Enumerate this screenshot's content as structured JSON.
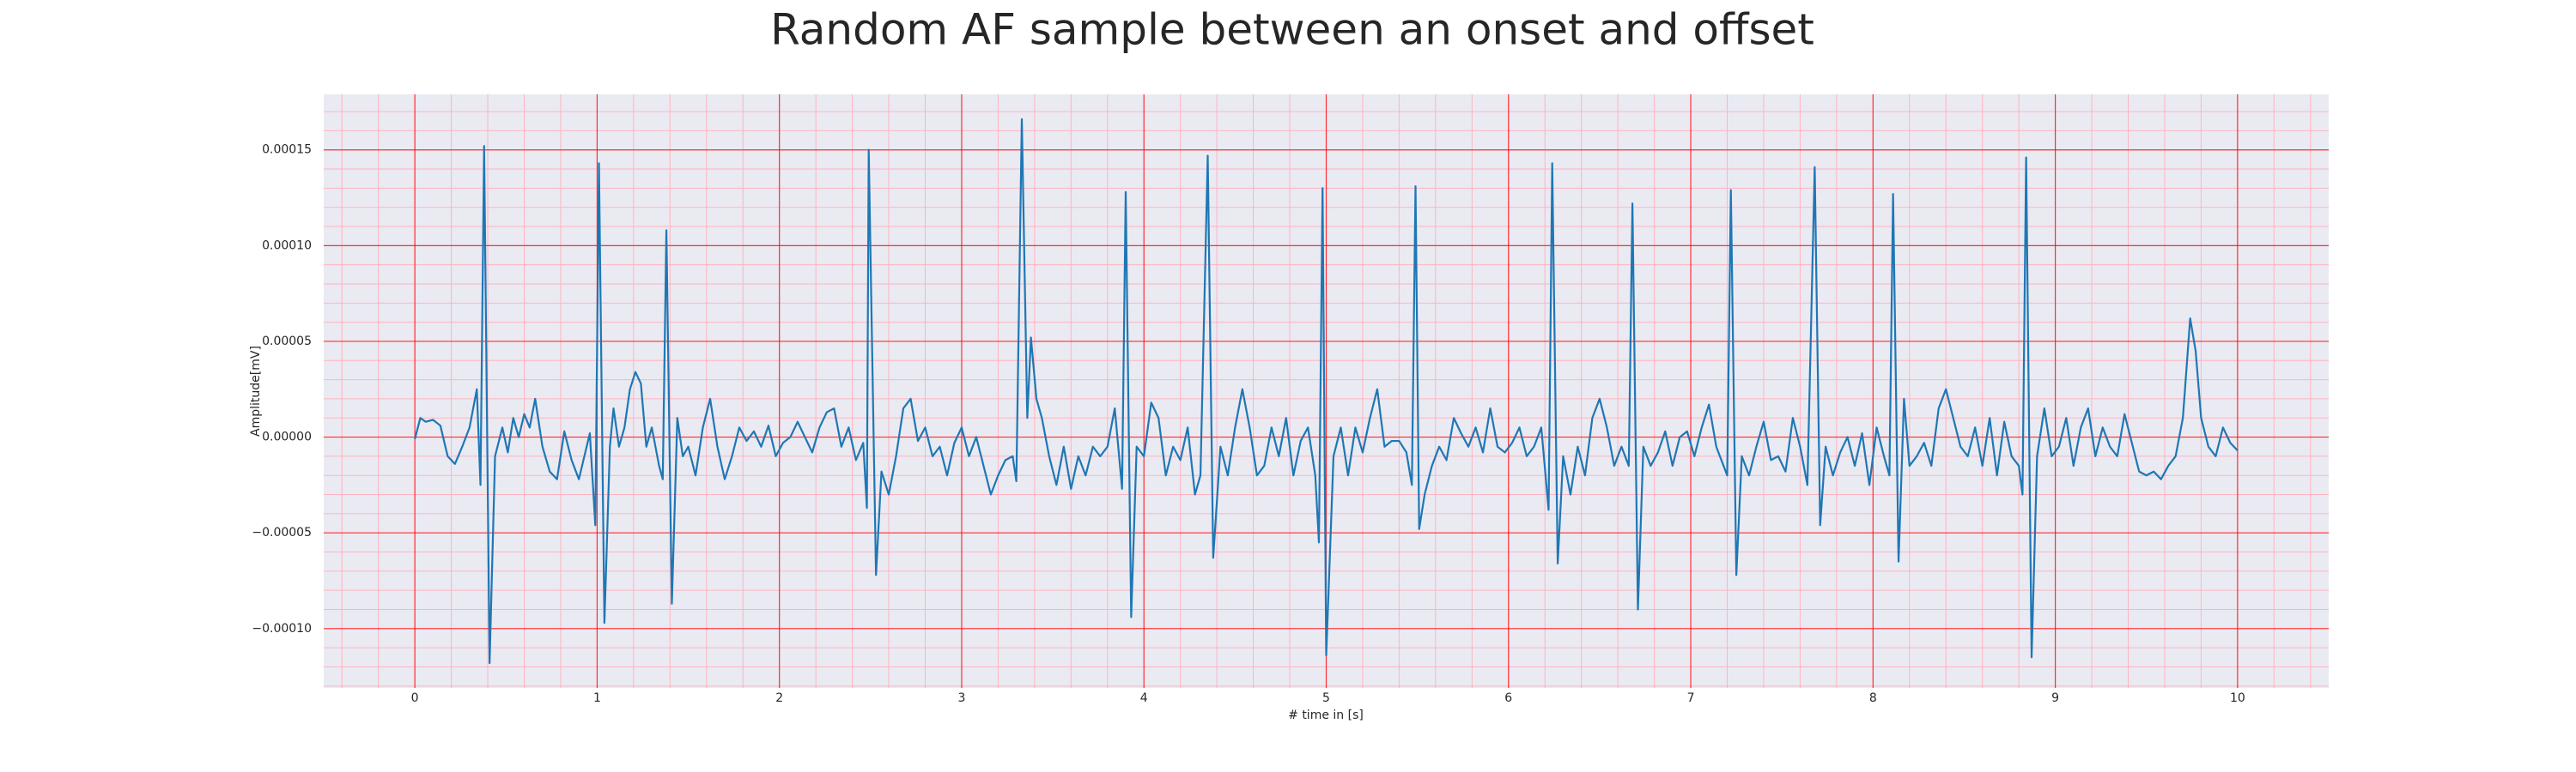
{
  "chart_data": {
    "type": "line",
    "title": "Random AF sample between an onset and offset",
    "x_label": "# time in [s]",
    "y_label": "Amplitude[mV]",
    "color": "#1f77b4",
    "background": "#eaeaf2",
    "grid": true,
    "grid_color": "#ff0000",
    "minor_grid": true,
    "minor_grid_color": "#ffb3c0",
    "xlim": [
      -0.5,
      10.5
    ],
    "xticks": [
      0,
      1,
      2,
      3,
      4,
      5,
      6,
      7,
      8,
      9,
      10
    ],
    "ylim": [
      -0.000131,
      0.000179
    ],
    "yticks": [
      {
        "value": 0.00015,
        "label": "0.00015"
      },
      {
        "value": 0.0001,
        "label": "0.00010"
      },
      {
        "value": 5e-05,
        "label": "0.00005"
      },
      {
        "value": 0,
        "label": "0.00000"
      },
      {
        "value": -5e-05,
        "label": "−0.00005"
      },
      {
        "value": -0.0001,
        "label": "−0.00010"
      }
    ],
    "x": [
      0,
      0.03,
      0.06,
      0.1,
      0.14,
      0.18,
      0.22,
      0.26,
      0.3,
      0.34,
      0.36,
      0.38,
      0.41,
      0.44,
      0.48,
      0.51,
      0.54,
      0.57,
      0.6,
      0.63,
      0.66,
      0.7,
      0.74,
      0.78,
      0.82,
      0.86,
      0.9,
      0.93,
      0.96,
      0.99,
      1.01,
      1.04,
      1.07,
      1.09,
      1.12,
      1.15,
      1.18,
      1.21,
      1.24,
      1.27,
      1.3,
      1.34,
      1.36,
      1.38,
      1.41,
      1.44,
      1.47,
      1.5,
      1.54,
      1.58,
      1.62,
      1.66,
      1.7,
      1.74,
      1.78,
      1.82,
      1.86,
      1.9,
      1.94,
      1.98,
      2.02,
      2.06,
      2.1,
      2.14,
      2.18,
      2.22,
      2.26,
      2.3,
      2.34,
      2.38,
      2.42,
      2.46,
      2.48,
      2.49,
      2.53,
      2.56,
      2.6,
      2.64,
      2.68,
      2.72,
      2.76,
      2.8,
      2.84,
      2.88,
      2.92,
      2.96,
      3,
      3.04,
      3.08,
      3.12,
      3.16,
      3.2,
      3.24,
      3.28,
      3.3,
      3.33,
      3.36,
      3.38,
      3.41,
      3.44,
      3.48,
      3.52,
      3.56,
      3.6,
      3.64,
      3.68,
      3.72,
      3.76,
      3.8,
      3.84,
      3.88,
      3.9,
      3.93,
      3.96,
      4,
      4.04,
      4.08,
      4.12,
      4.16,
      4.2,
      4.24,
      4.28,
      4.31,
      4.35,
      4.38,
      4.42,
      4.46,
      4.5,
      4.54,
      4.58,
      4.62,
      4.66,
      4.7,
      4.74,
      4.78,
      4.82,
      4.86,
      4.9,
      4.94,
      4.96,
      4.98,
      5,
      5.04,
      5.08,
      5.12,
      5.16,
      5.2,
      5.24,
      5.28,
      5.32,
      5.36,
      5.4,
      5.44,
      5.47,
      5.49,
      5.51,
      5.54,
      5.58,
      5.62,
      5.66,
      5.7,
      5.74,
      5.78,
      5.82,
      5.86,
      5.9,
      5.94,
      5.98,
      6.02,
      6.06,
      6.1,
      6.14,
      6.18,
      6.22,
      6.24,
      6.27,
      6.3,
      6.34,
      6.38,
      6.42,
      6.46,
      6.5,
      6.54,
      6.58,
      6.62,
      6.66,
      6.68,
      6.71,
      6.74,
      6.78,
      6.82,
      6.86,
      6.9,
      6.94,
      6.98,
      7.02,
      7.06,
      7.1,
      7.14,
      7.18,
      7.2,
      7.22,
      7.25,
      7.28,
      7.32,
      7.36,
      7.4,
      7.44,
      7.48,
      7.52,
      7.56,
      7.6,
      7.64,
      7.68,
      7.71,
      7.74,
      7.78,
      7.82,
      7.86,
      7.9,
      7.94,
      7.98,
      8.02,
      8.06,
      8.09,
      8.11,
      8.14,
      8.17,
      8.2,
      8.24,
      8.28,
      8.32,
      8.36,
      8.4,
      8.44,
      8.48,
      8.52,
      8.56,
      8.6,
      8.64,
      8.68,
      8.72,
      8.76,
      8.8,
      8.82,
      8.84,
      8.87,
      8.9,
      8.94,
      8.98,
      9.02,
      9.06,
      9.1,
      9.14,
      9.18,
      9.22,
      9.26,
      9.3,
      9.34,
      9.38,
      9.42,
      9.46,
      9.5,
      9.54,
      9.58,
      9.62,
      9.66,
      9.7,
      9.74,
      9.77,
      9.8,
      9.84,
      9.88,
      9.92,
      9.96,
      10
    ],
    "values": [
      -1e-06,
      1e-05,
      8e-06,
      9e-06,
      6e-06,
      -1e-05,
      -1.4e-05,
      -5e-06,
      5e-06,
      2.5e-05,
      -2.5e-05,
      0.000152,
      -0.000118,
      -1e-05,
      5e-06,
      -8e-06,
      1e-05,
      0,
      1.2e-05,
      5e-06,
      2e-05,
      -5e-06,
      -1.8e-05,
      -2.2e-05,
      3e-06,
      -1.2e-05,
      -2.2e-05,
      -1e-05,
      2e-06,
      -4.6e-05,
      0.000143,
      -9.7e-05,
      -5e-06,
      1.5e-05,
      -5e-06,
      5e-06,
      2.5e-05,
      3.4e-05,
      2.8e-05,
      -5e-06,
      5e-06,
      -1.5e-05,
      -2.2e-05,
      0.000108,
      -8.7e-05,
      1e-05,
      -1e-05,
      -5e-06,
      -2e-05,
      5e-06,
      2e-05,
      -5e-06,
      -2.2e-05,
      -1e-05,
      5e-06,
      -2e-06,
      3e-06,
      -5e-06,
      6e-06,
      -1e-05,
      -3e-06,
      0,
      8e-06,
      0,
      -8e-06,
      5e-06,
      1.3e-05,
      1.5e-05,
      -5e-06,
      5e-06,
      -1.2e-05,
      -3e-06,
      -3.7e-05,
      0.00015,
      -7.2e-05,
      -1.8e-05,
      -3e-05,
      -1e-05,
      1.5e-05,
      2e-05,
      -2e-06,
      5e-06,
      -1e-05,
      -5e-06,
      -2e-05,
      -3e-06,
      5e-06,
      -1e-05,
      0,
      -1.5e-05,
      -3e-05,
      -2e-05,
      -1.2e-05,
      -1e-05,
      -2.3e-05,
      0.000166,
      1e-05,
      5.2e-05,
      2e-05,
      1e-05,
      -1e-05,
      -2.5e-05,
      -5e-06,
      -2.7e-05,
      -1e-05,
      -2e-05,
      -5e-06,
      -1e-05,
      -5e-06,
      1.5e-05,
      -2.7e-05,
      0.000128,
      -9.4e-05,
      -5e-06,
      -1e-05,
      1.8e-05,
      1e-05,
      -2e-05,
      -5e-06,
      -1.2e-05,
      5e-06,
      -3e-05,
      -2e-05,
      0.000147,
      -6.3e-05,
      -5e-06,
      -2e-05,
      5e-06,
      2.5e-05,
      5e-06,
      -2e-05,
      -1.5e-05,
      5e-06,
      -1e-05,
      1e-05,
      -2e-05,
      -2e-06,
      5e-06,
      -2e-05,
      -5.5e-05,
      0.00013,
      -0.000114,
      -1e-05,
      5e-06,
      -2e-05,
      5e-06,
      -8e-06,
      1e-05,
      2.5e-05,
      -5e-06,
      -2e-06,
      -2e-06,
      -8e-06,
      -2.5e-05,
      0.000131,
      -4.8e-05,
      -3e-05,
      -1.5e-05,
      -5e-06,
      -1.2e-05,
      1e-05,
      2e-06,
      -5e-06,
      5e-06,
      -8e-06,
      1.5e-05,
      -5e-06,
      -8e-06,
      -3e-06,
      5e-06,
      -1e-05,
      -5e-06,
      5e-06,
      -3.8e-05,
      0.000143,
      -6.6e-05,
      -1e-05,
      -3e-05,
      -5e-06,
      -2e-05,
      1e-05,
      2e-05,
      5e-06,
      -1.5e-05,
      -5e-06,
      -1.5e-05,
      0.000122,
      -9e-05,
      -5e-06,
      -1.5e-05,
      -8e-06,
      3e-06,
      -1.5e-05,
      0,
      3e-06,
      -1e-05,
      5e-06,
      1.7e-05,
      -5e-06,
      -1.5e-05,
      -2e-05,
      0.000129,
      -7.2e-05,
      -1e-05,
      -2e-05,
      -5e-06,
      8e-06,
      -1.2e-05,
      -1e-05,
      -1.8e-05,
      1e-05,
      -5e-06,
      -2.5e-05,
      0.000141,
      -4.6e-05,
      -5e-06,
      -2e-05,
      -8e-06,
      0,
      -1.5e-05,
      2e-06,
      -2.5e-05,
      5e-06,
      -1e-05,
      -2e-05,
      0.000127,
      -6.5e-05,
      2e-05,
      -1.5e-05,
      -1e-05,
      -3e-06,
      -1.5e-05,
      1.5e-05,
      2.5e-05,
      1e-05,
      -5e-06,
      -1e-05,
      5e-06,
      -1.5e-05,
      1e-05,
      -2e-05,
      8e-06,
      -1e-05,
      -1.5e-05,
      -3e-05,
      0.000146,
      -0.000115,
      -1e-05,
      1.5e-05,
      -1e-05,
      -5e-06,
      1e-05,
      -1.5e-05,
      5e-06,
      1.5e-05,
      -1e-05,
      5e-06,
      -5e-06,
      -1e-05,
      1.2e-05,
      -3e-06,
      -1.8e-05,
      -2e-05,
      -1.8e-05,
      -2.2e-05,
      -1.5e-05,
      -1e-05,
      1e-05,
      6.2e-05,
      4.5e-05,
      1e-05,
      -5e-06,
      -1e-05,
      5e-06,
      -3e-06,
      -7e-06
    ]
  }
}
